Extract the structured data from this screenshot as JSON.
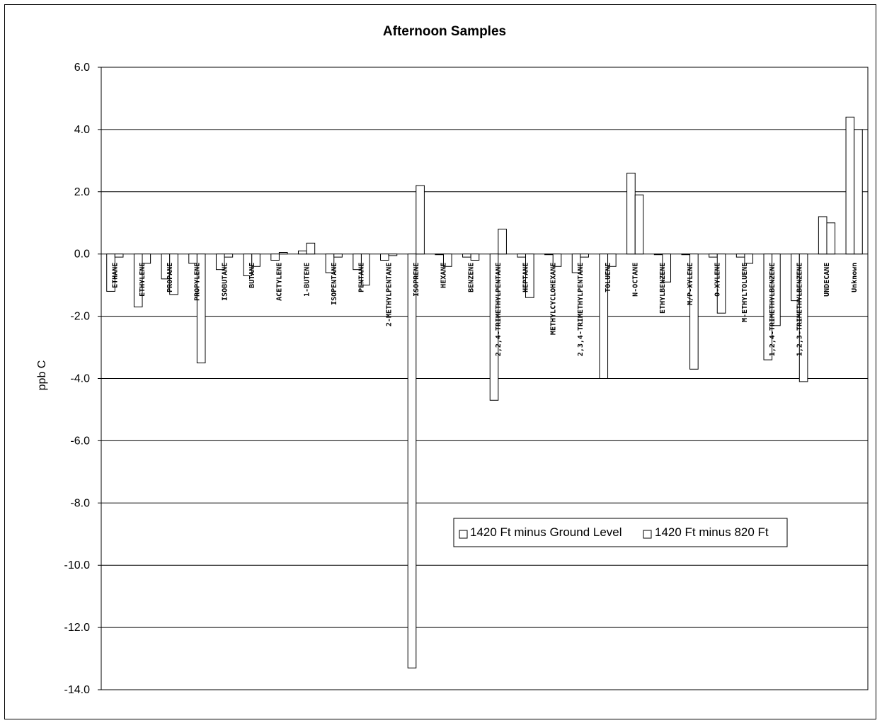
{
  "chart_data": {
    "type": "bar",
    "title": "Afternoon Samples",
    "ylabel": "ppb C",
    "xlabel": "",
    "ylim": [
      -14,
      6
    ],
    "yticks": [
      "6.0",
      "4.0",
      "2.0",
      "0.0",
      "-2.0",
      "-4.0",
      "-6.0",
      "-8.0",
      "-10.0",
      "-12.0",
      "-14.0"
    ],
    "grid": true,
    "legend_position": "lower-right",
    "categories": [
      "ETHANE",
      "ETHYLENE",
      "PROPANE",
      "PROPYLENE",
      "ISOBUTANE",
      "BUTANE",
      "ACETYLENE",
      "1-BUTENE",
      "ISOPENTANE",
      "PENTANE",
      "2-METHYLPENTANE",
      "ISOPRENE",
      "HEXANE",
      "BENZENE",
      "2,2,4-TRIMETHYLPENTANE",
      "HEPTANE",
      "METHYLCYCLOHEXANE",
      "2,3,4-TRIMETHYLPENTANE",
      "TOLUENE",
      "N-OCTANE",
      "ETHYLBENZENE",
      "M/P-XYLENE",
      "O-XYLENE",
      "M-ETHYLTOLUENE",
      "1,2,4-TRIMETHYLBENZENE",
      "1,2,3-TRIMETHYLBENZENE",
      "UNDECANE",
      "Unknown"
    ],
    "series": [
      {
        "name": "1420 Ft minus Ground Level",
        "values": [
          -1.2,
          -1.7,
          -0.8,
          -0.3,
          -0.5,
          -0.7,
          -0.2,
          0.1,
          -0.6,
          -0.5,
          -0.2,
          -13.3,
          0.0,
          -0.1,
          -4.7,
          -0.1,
          0.0,
          -0.6,
          -4.0,
          2.6,
          0.0,
          0.0,
          -0.1,
          -0.1,
          -3.4,
          -1.5,
          1.2,
          4.4
        ]
      },
      {
        "name": "1420 Ft minus 820 Ft",
        "values": [
          -0.1,
          -0.3,
          -1.3,
          -3.5,
          -0.1,
          -0.4,
          0.05,
          0.35,
          -0.1,
          -1.0,
          -0.05,
          2.2,
          -0.4,
          -0.2,
          0.8,
          -1.4,
          -0.4,
          -0.1,
          -0.4,
          1.9,
          -0.9,
          -3.7,
          -1.9,
          -0.3,
          -2.3,
          -4.1,
          1.0,
          4.0
        ]
      }
    ]
  }
}
